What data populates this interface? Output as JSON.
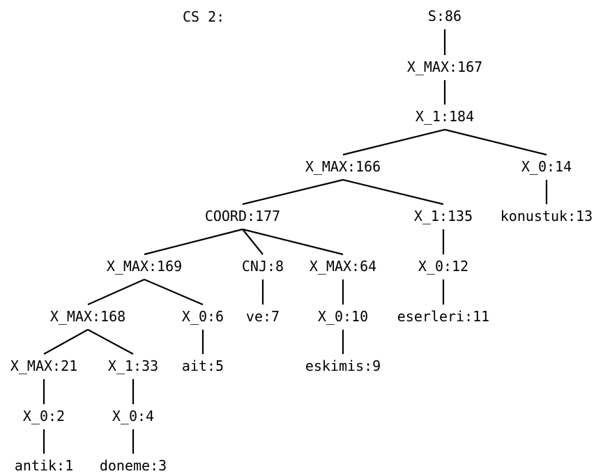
{
  "caption": "CS 2:",
  "tree": {
    "nodes": [
      {
        "id": "s86",
        "label": "S:86"
      },
      {
        "id": "xmax167",
        "label": "X_MAX:167"
      },
      {
        "id": "x1_184",
        "label": "X_1:184"
      },
      {
        "id": "xmax166",
        "label": "X_MAX:166"
      },
      {
        "id": "x0_14",
        "label": "X_0:14"
      },
      {
        "id": "konustuk13",
        "label": "konustuk:13"
      },
      {
        "id": "coord177",
        "label": "COORD:177"
      },
      {
        "id": "x1_135",
        "label": "X_1:135"
      },
      {
        "id": "x0_12",
        "label": "X_0:12"
      },
      {
        "id": "eserleri11",
        "label": "eserleri:11"
      },
      {
        "id": "xmax169",
        "label": "X_MAX:169"
      },
      {
        "id": "cnj8",
        "label": "CNJ:8"
      },
      {
        "id": "xmax64",
        "label": "X_MAX:64"
      },
      {
        "id": "ve7",
        "label": "ve:7"
      },
      {
        "id": "x0_10",
        "label": "X_0:10"
      },
      {
        "id": "eskimis9",
        "label": "eskimis:9"
      },
      {
        "id": "xmax168",
        "label": "X_MAX:168"
      },
      {
        "id": "x0_6",
        "label": "X_0:6"
      },
      {
        "id": "ait5",
        "label": "ait:5"
      },
      {
        "id": "xmax21",
        "label": "X_MAX:21"
      },
      {
        "id": "x1_33",
        "label": "X_1:33"
      },
      {
        "id": "x0_2",
        "label": "X_0:2"
      },
      {
        "id": "antik1",
        "label": "antik:1"
      },
      {
        "id": "x0_4",
        "label": "X_0:4"
      },
      {
        "id": "doneme3",
        "label": "doneme:3"
      }
    ],
    "edges": [
      [
        "s86",
        "xmax167"
      ],
      [
        "xmax167",
        "x1_184"
      ],
      [
        "x1_184",
        "xmax166"
      ],
      [
        "x1_184",
        "x0_14"
      ],
      [
        "x0_14",
        "konustuk13"
      ],
      [
        "xmax166",
        "coord177"
      ],
      [
        "xmax166",
        "x1_135"
      ],
      [
        "x1_135",
        "x0_12"
      ],
      [
        "x0_12",
        "eserleri11"
      ],
      [
        "coord177",
        "xmax169"
      ],
      [
        "coord177",
        "cnj8"
      ],
      [
        "coord177",
        "xmax64"
      ],
      [
        "cnj8",
        "ve7"
      ],
      [
        "xmax64",
        "x0_10"
      ],
      [
        "x0_10",
        "eskimis9"
      ],
      [
        "xmax169",
        "xmax168"
      ],
      [
        "xmax169",
        "x0_6"
      ],
      [
        "x0_6",
        "ait5"
      ],
      [
        "xmax168",
        "xmax21"
      ],
      [
        "xmax168",
        "x1_33"
      ],
      [
        "xmax21",
        "x0_2"
      ],
      [
        "x0_2",
        "antik1"
      ],
      [
        "x1_33",
        "x0_4"
      ],
      [
        "x0_4",
        "doneme3"
      ]
    ]
  }
}
